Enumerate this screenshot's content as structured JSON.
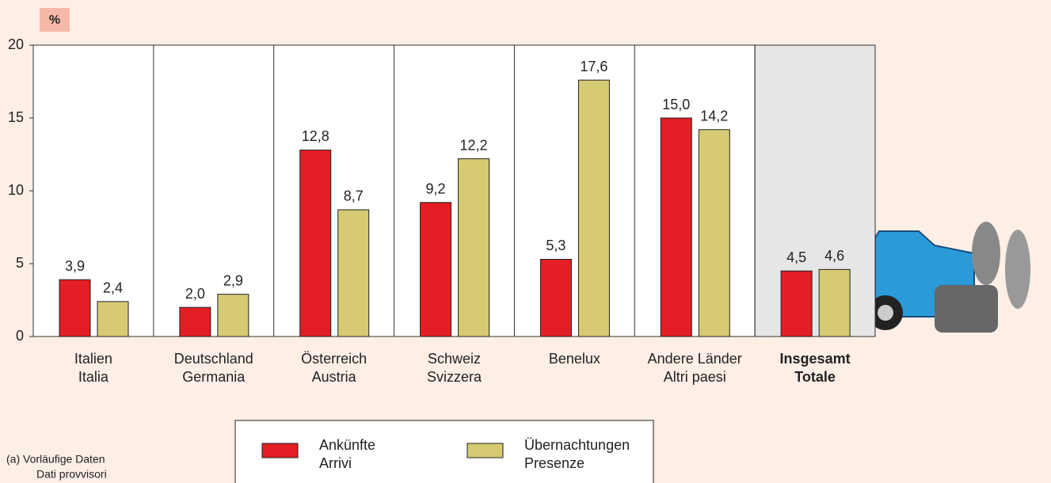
{
  "chart_data": {
    "type": "bar",
    "y_label": "%",
    "categories": [
      [
        "Italien",
        "Italia"
      ],
      [
        "Deutschland",
        "Germania"
      ],
      [
        "Österreich",
        "Austria"
      ],
      [
        "Schweiz",
        "Svizzera"
      ],
      [
        "Benelux"
      ],
      [
        "Andere Länder",
        "Altri paesi"
      ],
      [
        "Insgesamt",
        "Totale"
      ]
    ],
    "series": [
      {
        "name": [
          "Ankünfte",
          "Arrivi"
        ],
        "color": "#e31e24",
        "values": [
          3.9,
          2.0,
          12.8,
          9.2,
          5.3,
          15.0,
          4.5
        ],
        "value_labels": [
          "3,9",
          "2,0",
          "12,8",
          "9,2",
          "5,3",
          "15,0",
          "4,5"
        ]
      },
      {
        "name": [
          "Übernachtungen",
          "Presenze"
        ],
        "color": "#d6ca72",
        "values": [
          2.4,
          2.9,
          8.7,
          12.2,
          17.6,
          14.2,
          4.6
        ],
        "value_labels": [
          "2,4",
          "2,9",
          "8,7",
          "12,2",
          "17,6",
          "14,2",
          "4,6"
        ]
      }
    ],
    "ylim": [
      0,
      20
    ],
    "yticks": [
      0,
      5,
      10,
      15,
      20
    ],
    "footnote": [
      "(a)  Vorläufige Daten",
      "Dati provvisori"
    ]
  }
}
